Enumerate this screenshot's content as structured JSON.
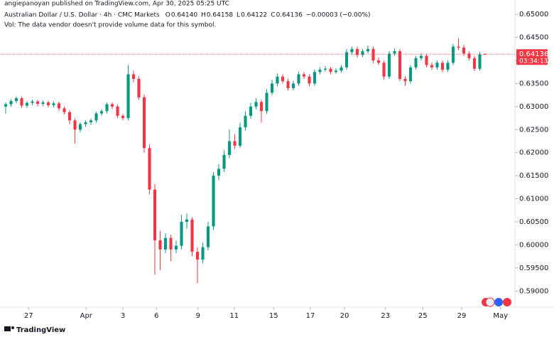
{
  "header": {
    "publisher": "angiepanoyan published on TradingView.com, Apr 30, 2025 05:25 UTC",
    "symbol": "Australian Dollar / U.S. Dollar · 4h · CMC Markets",
    "ohlc": [
      {
        "label": "O",
        "value": "0.64140"
      },
      {
        "label": "H",
        "value": "0.64158"
      },
      {
        "label": "L",
        "value": "0.64122"
      },
      {
        "label": "C",
        "value": "0.64136"
      }
    ],
    "change": "−0.00003 (−0.00%)",
    "volume_note": "Vol: The data vendor doesn't provide volume data for this symbol."
  },
  "chart_data": {
    "type": "candlestick",
    "up_color": "#089981",
    "down_color": "#f23645",
    "grid": false,
    "x": [
      0,
      1,
      2,
      3,
      4,
      5,
      6,
      7,
      8,
      9,
      10,
      11,
      12,
      13,
      14,
      15,
      16,
      17,
      18,
      19,
      20,
      21,
      22,
      23,
      24,
      25,
      26,
      27,
      28,
      29,
      30,
      31,
      32,
      33,
      34,
      35,
      36,
      37,
      38,
      39,
      40,
      41,
      42,
      43,
      44,
      45,
      46,
      47,
      48,
      49,
      50,
      51,
      52,
      53,
      54,
      55,
      56,
      57,
      58,
      59,
      60,
      61,
      62,
      63,
      64,
      65,
      66,
      67,
      68,
      69,
      70,
      71,
      72,
      73,
      74,
      75,
      76,
      77,
      78,
      79,
      80,
      81,
      82,
      83,
      84,
      85,
      86,
      87,
      88,
      89,
      90
    ],
    "open": [
      0.63,
      0.6305,
      0.6312,
      0.6318,
      0.6302,
      0.6308,
      0.6311,
      0.6306,
      0.6309,
      0.6303,
      0.6307,
      0.6296,
      0.6288,
      0.627,
      0.625,
      0.6262,
      0.6266,
      0.627,
      0.6285,
      0.629,
      0.6305,
      0.63,
      0.628,
      0.6275,
      0.637,
      0.636,
      0.632,
      0.621,
      0.612,
      0.601,
      0.599,
      0.6015,
      0.599,
      0.5998,
      0.605,
      0.6055,
      0.5985,
      0.5968,
      0.5995,
      0.604,
      0.615,
      0.6165,
      0.6195,
      0.6225,
      0.6215,
      0.6255,
      0.628,
      0.63,
      0.631,
      0.629,
      0.633,
      0.635,
      0.6365,
      0.6355,
      0.634,
      0.635,
      0.637,
      0.6365,
      0.635,
      0.6375,
      0.638,
      0.6382,
      0.6375,
      0.6378,
      0.6385,
      0.6418,
      0.6425,
      0.6412,
      0.642,
      0.6425,
      0.64,
      0.6395,
      0.6365,
      0.6415,
      0.642,
      0.636,
      0.6355,
      0.6385,
      0.6405,
      0.641,
      0.639,
      0.6385,
      0.6395,
      0.638,
      0.6395,
      0.643,
      0.6428,
      0.6415,
      0.6405,
      0.6382,
      0.6414
    ],
    "high": [
      0.6309,
      0.6316,
      0.6322,
      0.6322,
      0.6312,
      0.6315,
      0.6315,
      0.6313,
      0.6313,
      0.6311,
      0.6311,
      0.63,
      0.6292,
      0.6274,
      0.6266,
      0.627,
      0.6274,
      0.6289,
      0.6294,
      0.6309,
      0.6309,
      0.6304,
      0.6284,
      0.639,
      0.6378,
      0.6366,
      0.6326,
      0.6218,
      0.6132,
      0.603,
      0.6025,
      0.6022,
      0.601,
      0.6065,
      0.6068,
      0.606,
      0.5995,
      0.6005,
      0.605,
      0.6158,
      0.6175,
      0.6205,
      0.625,
      0.624,
      0.6265,
      0.629,
      0.6308,
      0.6318,
      0.6315,
      0.6338,
      0.6358,
      0.6372,
      0.637,
      0.636,
      0.6356,
      0.6376,
      0.6375,
      0.637,
      0.638,
      0.6385,
      0.6388,
      0.6386,
      0.6383,
      0.639,
      0.6425,
      0.643,
      0.643,
      0.6425,
      0.6432,
      0.643,
      0.6406,
      0.64,
      0.642,
      0.6426,
      0.6425,
      0.6366,
      0.639,
      0.641,
      0.6416,
      0.6415,
      0.6396,
      0.64,
      0.64,
      0.64,
      0.6436,
      0.6448,
      0.6434,
      0.642,
      0.641,
      0.6418,
      0.64158
    ],
    "low": [
      0.6285,
      0.63,
      0.6307,
      0.6297,
      0.6297,
      0.6303,
      0.6301,
      0.6301,
      0.6298,
      0.6298,
      0.6291,
      0.6283,
      0.6262,
      0.622,
      0.6244,
      0.6256,
      0.626,
      0.6265,
      0.628,
      0.6285,
      0.6295,
      0.6275,
      0.627,
      0.627,
      0.6352,
      0.6315,
      0.62,
      0.611,
      0.5935,
      0.5945,
      0.5982,
      0.5965,
      0.5982,
      0.599,
      0.6035,
      0.5975,
      0.5917,
      0.596,
      0.5988,
      0.6032,
      0.614,
      0.6158,
      0.6188,
      0.6208,
      0.621,
      0.6248,
      0.6274,
      0.6294,
      0.6265,
      0.6284,
      0.6325,
      0.6344,
      0.635,
      0.6335,
      0.6335,
      0.6345,
      0.636,
      0.6344,
      0.6345,
      0.637,
      0.6376,
      0.637,
      0.6371,
      0.6374,
      0.638,
      0.6413,
      0.6406,
      0.6407,
      0.6415,
      0.6394,
      0.639,
      0.6358,
      0.636,
      0.641,
      0.6355,
      0.6345,
      0.635,
      0.638,
      0.64,
      0.6385,
      0.638,
      0.638,
      0.6375,
      0.6375,
      0.639,
      0.6423,
      0.641,
      0.64,
      0.6377,
      0.6378,
      0.64122
    ],
    "close": [
      0.6305,
      0.6312,
      0.6318,
      0.6302,
      0.6308,
      0.6311,
      0.6306,
      0.6309,
      0.6303,
      0.6307,
      0.6296,
      0.6288,
      0.627,
      0.625,
      0.6262,
      0.6266,
      0.627,
      0.6285,
      0.629,
      0.6305,
      0.63,
      0.628,
      0.6275,
      0.637,
      0.636,
      0.632,
      0.621,
      0.612,
      0.601,
      0.599,
      0.6015,
      0.599,
      0.5998,
      0.605,
      0.6055,
      0.5985,
      0.5968,
      0.5995,
      0.604,
      0.615,
      0.6165,
      0.6195,
      0.6225,
      0.6215,
      0.6255,
      0.628,
      0.63,
      0.631,
      0.629,
      0.633,
      0.635,
      0.6365,
      0.6355,
      0.634,
      0.635,
      0.637,
      0.6365,
      0.635,
      0.6375,
      0.638,
      0.6382,
      0.6375,
      0.6378,
      0.6385,
      0.6418,
      0.6425,
      0.6412,
      0.642,
      0.6425,
      0.64,
      0.6395,
      0.6365,
      0.6415,
      0.642,
      0.636,
      0.6355,
      0.6385,
      0.6405,
      0.641,
      0.639,
      0.6385,
      0.6395,
      0.638,
      0.6395,
      0.643,
      0.6428,
      0.6415,
      0.6405,
      0.6382,
      0.6413,
      0.64136
    ],
    "xlim": [
      -1.07,
      95.6
    ],
    "xticks": [
      {
        "value": 4.3,
        "label": "27"
      },
      {
        "value": 15.1,
        "label": "Apr"
      },
      {
        "value": 22,
        "label": "3"
      },
      {
        "value": 28.3,
        "label": "6"
      },
      {
        "value": 36.1,
        "label": "9"
      },
      {
        "value": 42.9,
        "label": "11"
      },
      {
        "value": 50.3,
        "label": "15"
      },
      {
        "value": 57.2,
        "label": "17"
      },
      {
        "value": 63.6,
        "label": "20"
      },
      {
        "value": 71.3,
        "label": "23"
      },
      {
        "value": 78.3,
        "label": "25"
      },
      {
        "value": 85.6,
        "label": "29"
      },
      {
        "value": 92.9,
        "label": "May"
      }
    ],
    "ylim": [
      0.5868,
      0.6525
    ],
    "yticks": [
      {
        "value": 0.59,
        "label": "0.59000"
      },
      {
        "value": 0.595,
        "label": "0.59500"
      },
      {
        "value": 0.6,
        "label": "0.60000"
      },
      {
        "value": 0.605,
        "label": "0.60500"
      },
      {
        "value": 0.61,
        "label": "0.61000"
      },
      {
        "value": 0.615,
        "label": "0.61500"
      },
      {
        "value": 0.62,
        "label": "0.62000"
      },
      {
        "value": 0.625,
        "label": "0.62500"
      },
      {
        "value": 0.63,
        "label": "0.63000"
      },
      {
        "value": 0.635,
        "label": "0.63500"
      },
      {
        "value": 0.64,
        "label": "0.64000"
      },
      {
        "value": 0.645,
        "label": "0.64500"
      },
      {
        "value": 0.65,
        "label": "0.65000"
      }
    ],
    "last_price": {
      "value": 0.64136,
      "label": "0.64136",
      "countdown": "03:34:13",
      "color": "#f23645"
    }
  },
  "footer": {
    "brand": "TradingView"
  }
}
